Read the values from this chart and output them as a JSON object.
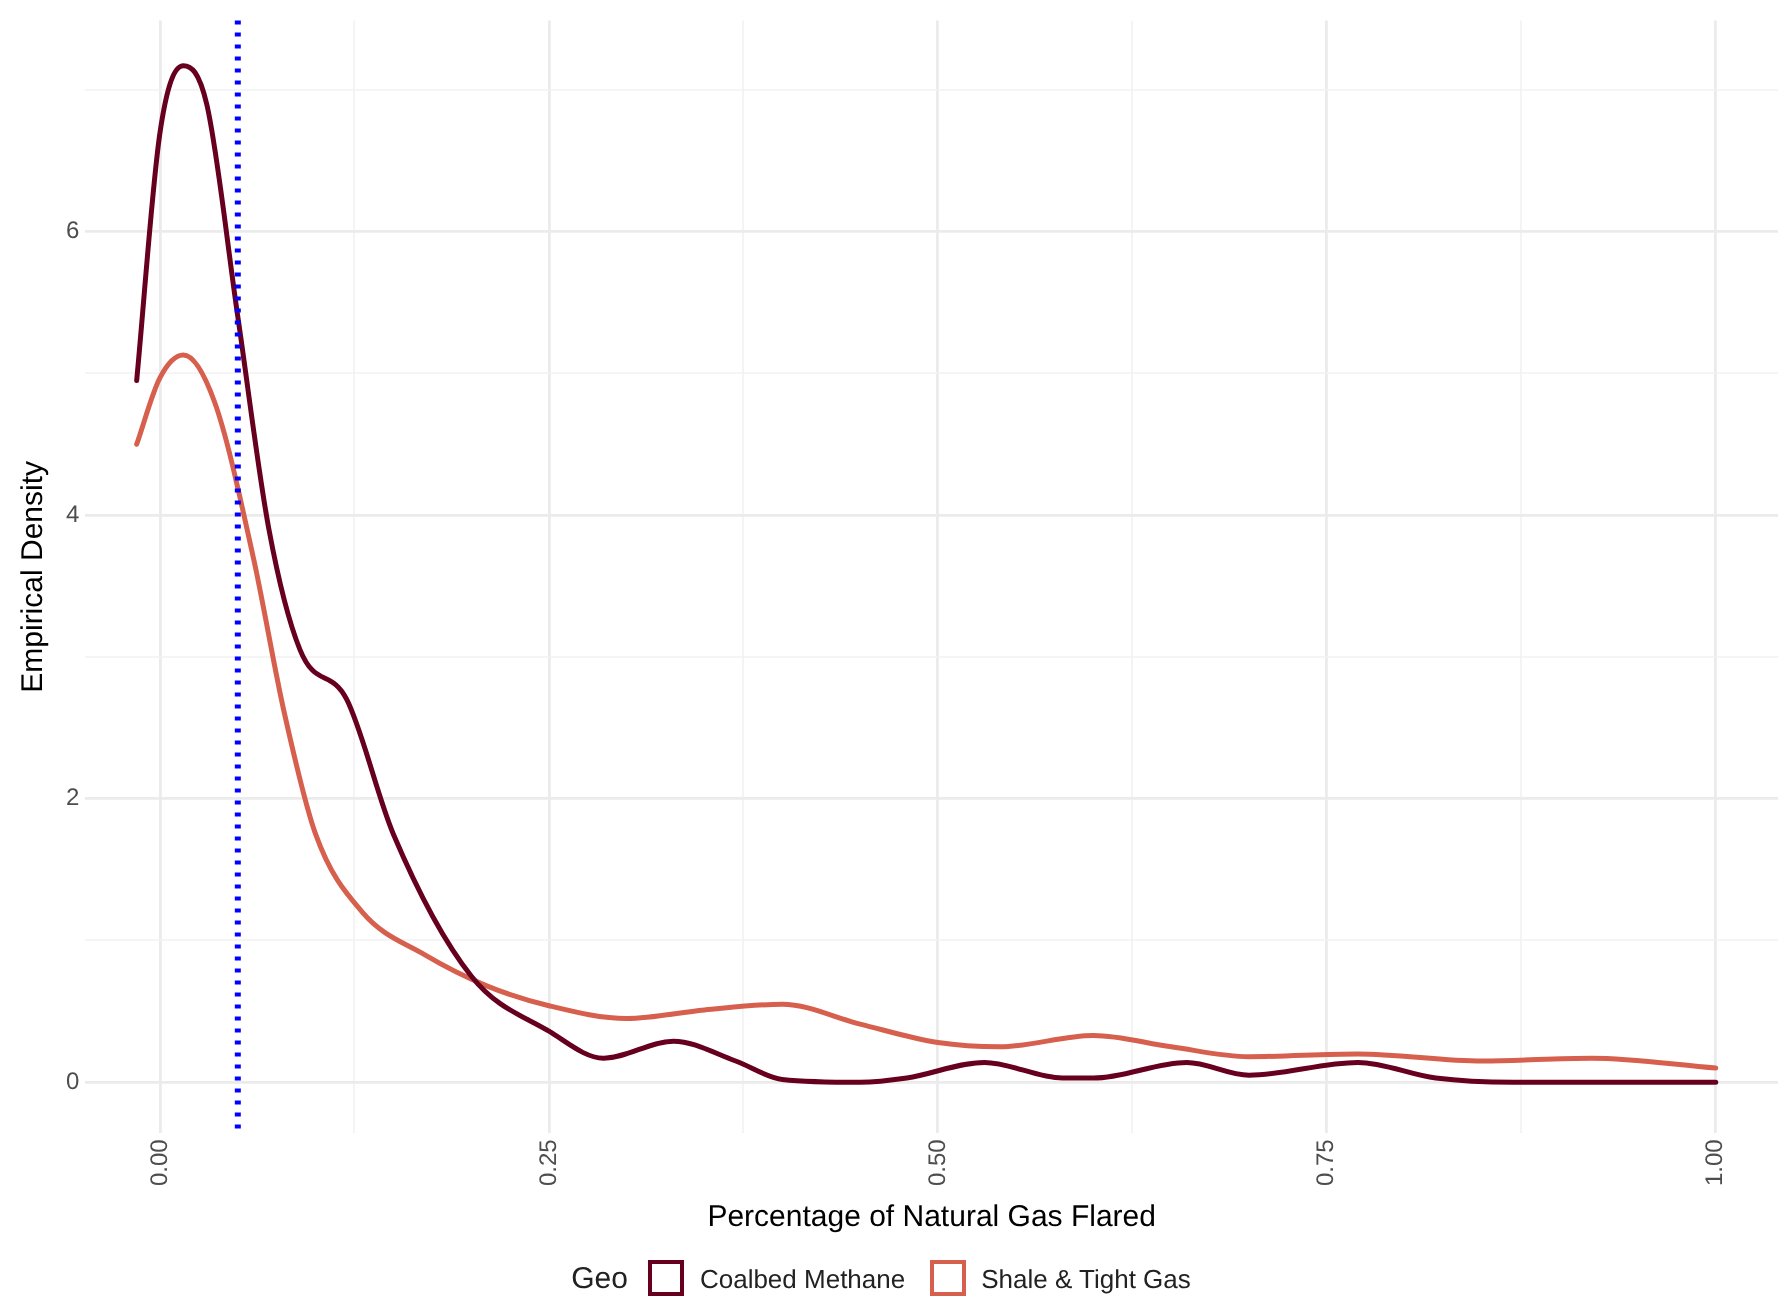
{
  "chart_data": {
    "type": "line",
    "xlabel": "Percentage of Natural Gas Flared",
    "ylabel": "Empirical Density",
    "legend_title": "Geo",
    "legend": "bottom",
    "grid": true,
    "marker": "none",
    "line_style": "solid",
    "xlim": [
      -0.048,
      1.04
    ],
    "ylim": [
      -0.36,
      7.49
    ],
    "xticks": [
      {
        "value": 0,
        "label": "0.00"
      },
      {
        "value": 0.125,
        "label": null
      },
      {
        "value": 0.25,
        "label": "0.25"
      },
      {
        "value": 0.375,
        "label": null
      },
      {
        "value": 0.5,
        "label": "0.50"
      },
      {
        "value": 0.625,
        "label": null
      },
      {
        "value": 0.75,
        "label": "0.75"
      },
      {
        "value": 0.875,
        "label": null
      },
      {
        "value": 1,
        "label": "1.00"
      }
    ],
    "yticks": [
      0,
      {
        "value": 1,
        "label": null
      },
      2,
      {
        "value": 3,
        "label": null
      },
      4,
      {
        "value": 5,
        "label": null
      },
      6,
      {
        "value": 7,
        "label": null
      }
    ],
    "ref_lines": [
      {
        "axis": "x",
        "value": 0.05,
        "label": null,
        "color": "#0000ff",
        "line_style": "dotted"
      }
    ],
    "series": [
      {
        "name": "Coalbed Methane",
        "color": "#67001f",
        "x": [
          -0.015,
          0,
          0.015,
          0.03,
          0.05,
          0.07,
          0.09,
          0.12,
          0.15,
          0.2,
          0.25,
          0.285,
          0.33,
          0.37,
          0.4,
          0.45,
          0.48,
          0.53,
          0.58,
          0.6,
          0.66,
          0.7,
          0.77,
          0.82,
          0.87,
          1.0
        ],
        "values": [
          4.95,
          6.7,
          7.17,
          6.9,
          5.4,
          3.9,
          3.05,
          2.7,
          1.75,
          0.75,
          0.36,
          0.17,
          0.29,
          0.15,
          0.02,
          0,
          0.03,
          0.14,
          0.03,
          0.03,
          0.14,
          0.05,
          0.14,
          0.03,
          0,
          0
        ]
      },
      {
        "name": "Shale & Tight Gas",
        "color": "#d6604d",
        "x": [
          -0.015,
          0,
          0.015,
          0.035,
          0.06,
          0.08,
          0.1,
          0.13,
          0.17,
          0.21,
          0.25,
          0.3,
          0.35,
          0.4,
          0.45,
          0.5,
          0.54,
          0.6,
          0.65,
          0.7,
          0.77,
          0.85,
          0.92,
          1.0
        ],
        "values": [
          4.5,
          4.97,
          5.13,
          4.8,
          3.7,
          2.6,
          1.75,
          1.2,
          0.9,
          0.68,
          0.54,
          0.45,
          0.51,
          0.55,
          0.41,
          0.28,
          0.25,
          0.33,
          0.25,
          0.18,
          0.2,
          0.15,
          0.17,
          0.1
        ]
      }
    ]
  }
}
